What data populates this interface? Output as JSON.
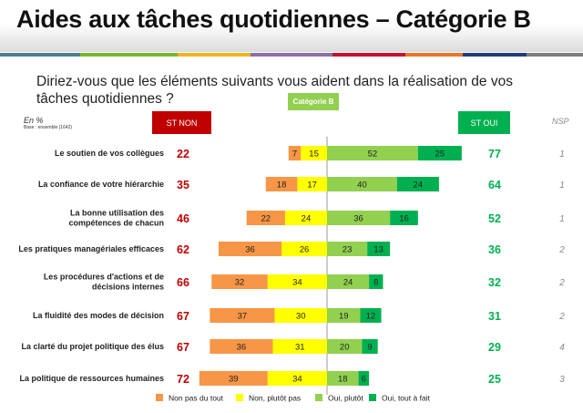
{
  "title": "Aides aux tâches quotidiennes – Catégorie B",
  "question": "Diriez-vous que les éléments suivants vous aident dans la réalisation de vos tâches quotidiennes ?",
  "category_badge": "Catégorie B",
  "unit_label": "En %",
  "base_label": "Base : ensemble (1642)",
  "st_non_label": "ST NON",
  "st_oui_label": "ST OUI",
  "nsp_label": "NSP",
  "stripe_colors": [
    "#4f7f8f",
    "#77b72e",
    "#f0b323",
    "#8a72a8",
    "#c8102e",
    "#e8762c",
    "#1f3d7a",
    "#7f7f7f"
  ],
  "chart_data": {
    "type": "bar",
    "orientation": "horizontal-diverging-stacked",
    "categories": [
      [
        "Le soutien de vos collègues"
      ],
      [
        "La confiance de votre hiérarchie"
      ],
      [
        "La bonne utilisation des",
        "compétences de chacun"
      ],
      [
        "Les pratiques managériales efficaces"
      ],
      [
        "Les procédures d'actions et de",
        "décisions internes"
      ],
      [
        "La fluidité des modes de décision"
      ],
      [
        "La clarté du projet politique des élus"
      ],
      [
        "La politique de ressources humaines"
      ]
    ],
    "series": [
      {
        "name": "Non pas du tout",
        "color": "#f79646",
        "side": "negative",
        "values": [
          7,
          18,
          22,
          36,
          32,
          37,
          36,
          39
        ]
      },
      {
        "name": "Non, plutôt pas",
        "color": "#ffff00",
        "side": "negative",
        "values": [
          15,
          17,
          24,
          26,
          34,
          30,
          31,
          34
        ]
      },
      {
        "name": "Oui, plutôt",
        "color": "#92d050",
        "side": "positive",
        "values": [
          52,
          40,
          36,
          23,
          24,
          19,
          20,
          18
        ]
      },
      {
        "name": "Oui, tout à fait",
        "color": "#00b050",
        "side": "positive",
        "values": [
          25,
          24,
          16,
          13,
          8,
          12,
          9,
          6
        ]
      }
    ],
    "st_non": [
      22,
      35,
      46,
      62,
      66,
      67,
      67,
      72
    ],
    "st_oui": [
      77,
      64,
      52,
      36,
      32,
      31,
      29,
      25
    ],
    "nsp": [
      1,
      1,
      1,
      2,
      2,
      2,
      4,
      3
    ],
    "st_non_color": "#c00000",
    "st_oui_color": "#00b050",
    "legend_position": "bottom"
  }
}
